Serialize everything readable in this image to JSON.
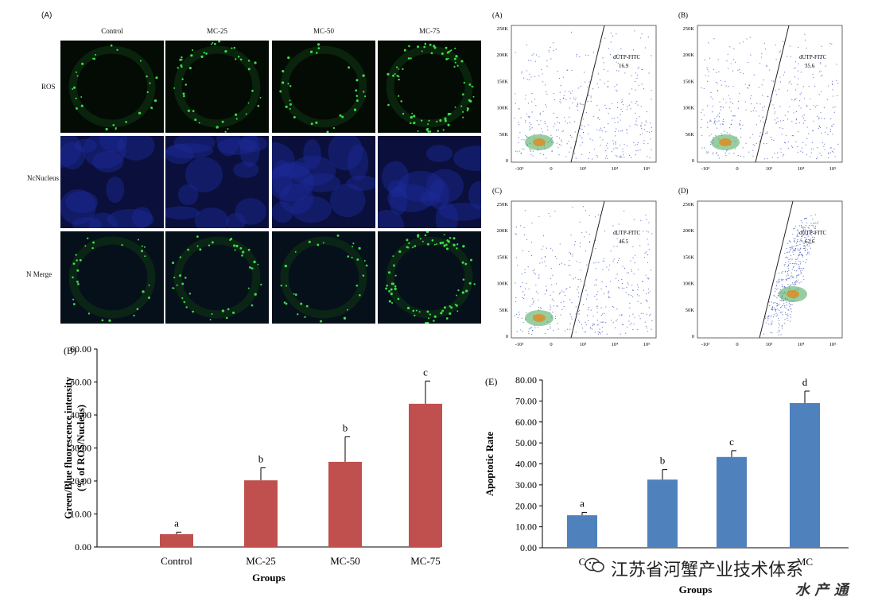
{
  "panel_a_letter": "(A)",
  "microscopy": {
    "columns": [
      "Control",
      "MC-25",
      "MC-50",
      "MC-75"
    ],
    "rows": [
      "ROS",
      "NcNucleus",
      "N  Merge"
    ]
  },
  "colors": {
    "red_bar": "#c0504d",
    "blue_bar": "#4f81bd",
    "ros_green": "#3ddc4a",
    "nucleus_blue": "#1d2b9a"
  },
  "flow": {
    "panels": [
      {
        "letter": "(A)",
        "gate_label": "dUTP-FITC",
        "gate_value": "16.9"
      },
      {
        "letter": "(B)",
        "gate_label": "dUTP-FITC",
        "gate_value": "35.6"
      },
      {
        "letter": "(C)",
        "gate_label": "dUTP-FITC",
        "gate_value": "46.5"
      },
      {
        "letter": "(D)",
        "gate_label": "dUTP-FITC",
        "gate_value": "62.6"
      }
    ],
    "y_ticks": [
      "250K",
      "200K",
      "150K",
      "100K",
      "50K",
      "0"
    ],
    "x_ticks": [
      "-10³",
      "0",
      "10³",
      "10⁴",
      "10⁵"
    ]
  },
  "chart_data": [
    {
      "type": "bar",
      "panel": "(B)",
      "categories": [
        "Control",
        "MC-25",
        "MC-50",
        "MC-75"
      ],
      "values": [
        3.9,
        20.2,
        25.8,
        43.4
      ],
      "errors": [
        0.6,
        3.8,
        7.6,
        6.9
      ],
      "letters": [
        "a",
        "b",
        "b",
        "c"
      ],
      "xlabel": "Groups",
      "ylabel": "Green/Blue fluorescence intensity",
      "ylabel2": "(% of ROS/Nucleus)",
      "ylim": [
        0,
        60
      ],
      "yticks": [
        "0.00",
        "10.00",
        "20.00",
        "30.00",
        "40.00",
        "50.00",
        "60.00"
      ],
      "color": "#c0504d"
    },
    {
      "type": "bar",
      "panel": "(E)",
      "categories": [
        "C",
        "",
        "",
        "MC"
      ],
      "values": [
        15.5,
        32.5,
        43.3,
        69.0
      ],
      "errors": [
        1.4,
        4.8,
        3.0,
        5.7
      ],
      "letters": [
        "a",
        "b",
        "c",
        "d"
      ],
      "xlabel": "Groups",
      "ylabel": "Apoptotic Rate",
      "ylim": [
        0,
        80
      ],
      "yticks": [
        "0.00",
        "10.00",
        "20.00",
        "30.00",
        "40.00",
        "50.00",
        "60.00",
        "70.00",
        "80.00"
      ],
      "color": "#4f81bd"
    }
  ],
  "watermark": {
    "text": "江苏省河蟹产业技术体系",
    "sub": "水 产 通"
  }
}
